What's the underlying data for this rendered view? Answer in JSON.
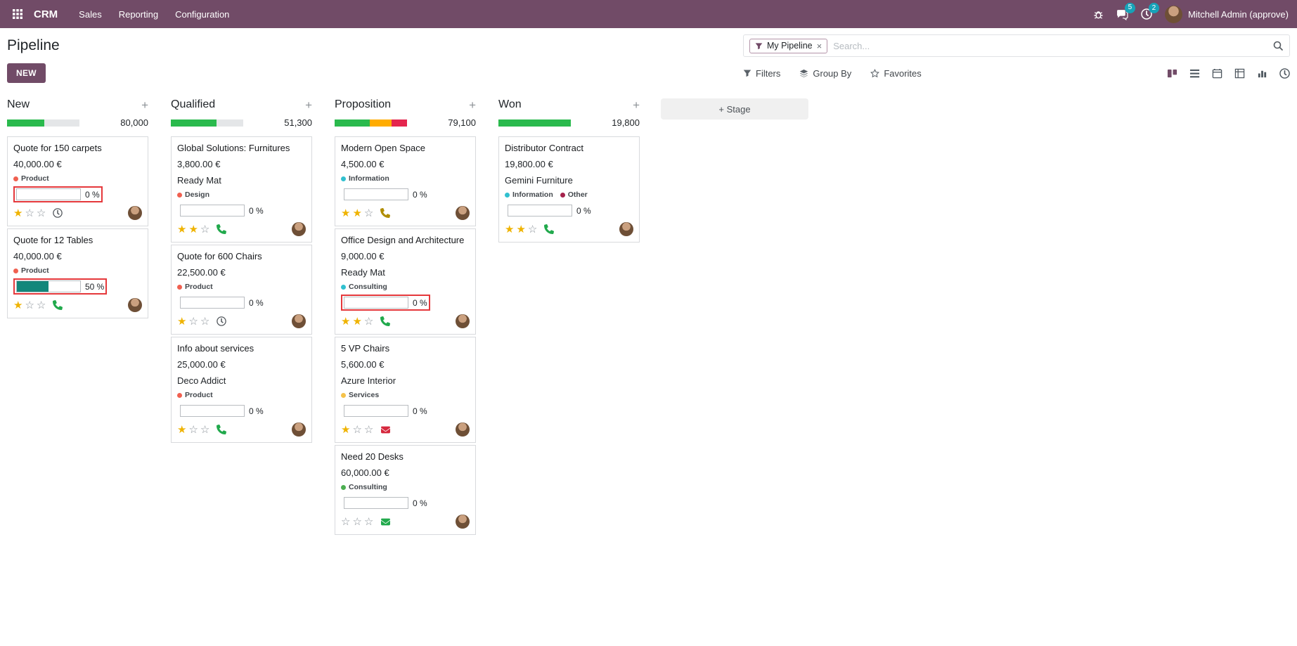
{
  "colors": {
    "accent": "#714B67",
    "badge": "#17a2b8",
    "highlight": "#e5383b",
    "star": "#efb300",
    "progress_fill": "#12877b"
  },
  "topbar": {
    "app": "CRM",
    "menus": [
      "Sales",
      "Reporting",
      "Configuration"
    ],
    "message_badge": "5",
    "activity_badge": "2",
    "user": "Mitchell Admin (approve)"
  },
  "control": {
    "title": "Pipeline",
    "new_label": "NEW",
    "facet": "My Pipeline",
    "facet_remove": "×",
    "search_placeholder": "Search...",
    "filters": "Filters",
    "group_by": "Group By",
    "favorites": "Favorites"
  },
  "board": {
    "add_stage": "+ Stage",
    "add_column_icon": "+",
    "columns": [
      {
        "name": "New",
        "total": "80,000",
        "bar": [
          {
            "color": "#2aba4d",
            "pct": 51
          },
          {
            "color": "#e4e6e8",
            "pct": 49
          }
        ],
        "cards": [
          {
            "title": "Quote for 150 carpets",
            "amount": "40,000.00 €",
            "partner": "",
            "tags": [
              {
                "label": "Product",
                "color": "#f06050"
              }
            ],
            "progress": {
              "label": "0 %",
              "fill": 0,
              "highlight": true
            },
            "stars": 1,
            "action": {
              "icon": "clock",
              "color": "#54595e"
            }
          },
          {
            "title": "Quote for 12 Tables",
            "amount": "40,000.00 €",
            "partner": "",
            "tags": [
              {
                "label": "Product",
                "color": "#f06050"
              }
            ],
            "progress": {
              "label": "50 %",
              "fill": 50,
              "highlight": true
            },
            "stars": 1,
            "action": {
              "icon": "phone",
              "color": "#21a94c"
            }
          }
        ]
      },
      {
        "name": "Qualified",
        "total": "51,300",
        "bar": [
          {
            "color": "#2aba4d",
            "pct": 63
          },
          {
            "color": "#e4e6e8",
            "pct": 37
          }
        ],
        "cards": [
          {
            "title": "Global Solutions: Furnitures",
            "amount": "3,800.00 €",
            "partner": "Ready Mat",
            "tags": [
              {
                "label": "Design",
                "color": "#f06050"
              }
            ],
            "progress": {
              "label": "0 %",
              "fill": 0,
              "highlight": false
            },
            "stars": 2,
            "action": {
              "icon": "phone",
              "color": "#21a94c"
            }
          },
          {
            "title": "Quote for 600 Chairs",
            "amount": "22,500.00 €",
            "partner": "",
            "tags": [
              {
                "label": "Product",
                "color": "#f06050"
              }
            ],
            "progress": {
              "label": "0 %",
              "fill": 0,
              "highlight": false
            },
            "stars": 1,
            "action": {
              "icon": "clock",
              "color": "#54595e"
            }
          },
          {
            "title": "Info about services",
            "amount": "25,000.00 €",
            "partner": "Deco Addict",
            "tags": [
              {
                "label": "Product",
                "color": "#f06050"
              }
            ],
            "progress": {
              "label": "0 %",
              "fill": 0,
              "highlight": false
            },
            "stars": 1,
            "action": {
              "icon": "phone",
              "color": "#21a94c"
            }
          }
        ]
      },
      {
        "name": "Proposition",
        "total": "79,100",
        "bar": [
          {
            "color": "#2aba4d",
            "pct": 49
          },
          {
            "color": "#ffac00",
            "pct": 30
          },
          {
            "color": "#e4264e",
            "pct": 21
          }
        ],
        "cards": [
          {
            "title": "Modern Open Space",
            "amount": "4,500.00 €",
            "partner": "",
            "tags": [
              {
                "label": "Information",
                "color": "#31c0cf"
              }
            ],
            "progress": {
              "label": "0 %",
              "fill": 0,
              "highlight": false
            },
            "stars": 2,
            "action": {
              "icon": "phone",
              "color": "#b08d00"
            }
          },
          {
            "title": "Office Design and Architecture",
            "amount": "9,000.00 €",
            "partner": "Ready Mat",
            "tags": [
              {
                "label": "Consulting",
                "color": "#31c0cf"
              }
            ],
            "progress": {
              "label": "0 %",
              "fill": 0,
              "highlight": true
            },
            "stars": 2,
            "action": {
              "icon": "phone",
              "color": "#21a94c"
            }
          },
          {
            "title": "5 VP Chairs",
            "amount": "5,600.00 €",
            "partner": "Azure Interior",
            "tags": [
              {
                "label": "Services",
                "color": "#f5c24a"
              }
            ],
            "progress": {
              "label": "0 %",
              "fill": 0,
              "highlight": false
            },
            "stars": 1,
            "action": {
              "icon": "envelope",
              "color": "#d6293e"
            }
          },
          {
            "title": "Need 20 Desks",
            "amount": "60,000.00 €",
            "partner": "",
            "tags": [
              {
                "label": "Consulting",
                "color": "#4cae51"
              }
            ],
            "progress": {
              "label": "0 %",
              "fill": 0,
              "highlight": false
            },
            "stars": 0,
            "action": {
              "icon": "envelope",
              "color": "#21a94c"
            }
          }
        ]
      },
      {
        "name": "Won",
        "total": "19,800",
        "bar": [
          {
            "color": "#2aba4d",
            "pct": 100
          }
        ],
        "cards": [
          {
            "title": "Distributor Contract",
            "amount": "19,800.00 €",
            "partner": "Gemini Furniture",
            "tags": [
              {
                "label": "Information",
                "color": "#31c0cf"
              },
              {
                "label": "Other",
                "color": "#a5224c"
              }
            ],
            "progress": {
              "label": "0 %",
              "fill": 0,
              "highlight": false
            },
            "stars": 2,
            "action": {
              "icon": "phone",
              "color": "#21a94c"
            }
          }
        ]
      }
    ]
  }
}
